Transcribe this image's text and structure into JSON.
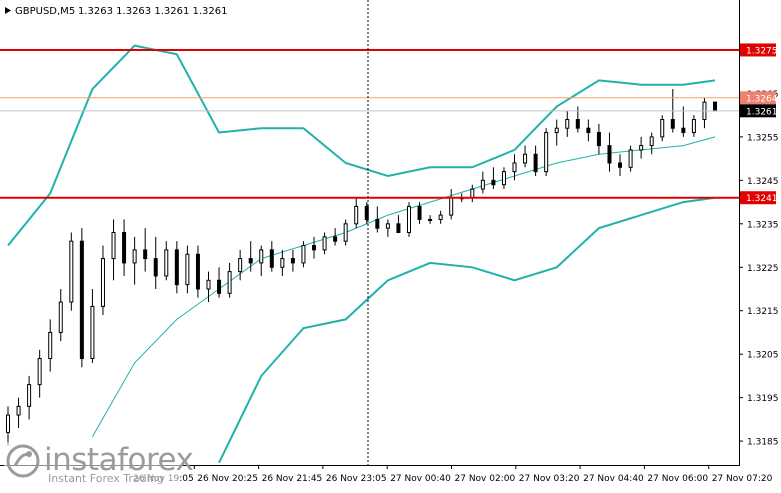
{
  "header": {
    "symbol": "GBPUSD,M5",
    "ohlc": "1.3263 1.3263 1.3261 1.3261"
  },
  "price_scale": {
    "ticks": [
      "1.3265",
      "1.3255",
      "1.3245",
      "1.3235",
      "1.3225",
      "1.3215",
      "1.3205",
      "1.3195",
      "1.3185"
    ]
  },
  "time_scale": {
    "ticks": [
      "26 Nov 19:05",
      "26 Nov 20:25",
      "26 Nov 21:45",
      "26 Nov 23:05",
      "27 Nov 00:40",
      "27 Nov 02:00",
      "27 Nov 03:20",
      "27 Nov 04:40",
      "27 Nov 06:00",
      "27 Nov 07:20"
    ]
  },
  "price_tags": {
    "level_high": "1.3275",
    "last_high": "1.3264",
    "current": "1.3261",
    "level_low": "1.3241"
  },
  "watermark": {
    "brand": "instaforex",
    "tagline": "Instant Forex Trading"
  },
  "colors": {
    "candle": "#000000",
    "bollinger": "#20b2aa",
    "moving_average": "#20b2aa",
    "level_lines": "#e00000",
    "price_line": "#f4a460",
    "tag_red": "#e00000",
    "tag_dark": "#000000",
    "tag_orange": "#f08070",
    "grid_dotted": "#000000"
  },
  "chart_data": {
    "type": "candlestick",
    "ylim": [
      1.31795,
      1.32865
    ],
    "horizontal_levels": [
      1.3275,
      1.3241
    ],
    "bid_line": 1.3264,
    "last_price": 1.3261,
    "candles": [
      [
        1.3187,
        1.3193,
        1.3184,
        1.3191
      ],
      [
        1.3191,
        1.3195,
        1.3188,
        1.3193
      ],
      [
        1.3193,
        1.32,
        1.319,
        1.3198
      ],
      [
        1.3198,
        1.3206,
        1.3195,
        1.3204
      ],
      [
        1.3204,
        1.3213,
        1.3201,
        1.321
      ],
      [
        1.321,
        1.322,
        1.3208,
        1.3217
      ],
      [
        1.3217,
        1.3233,
        1.3215,
        1.3231
      ],
      [
        1.3231,
        1.3234,
        1.3202,
        1.3204
      ],
      [
        1.3204,
        1.322,
        1.3203,
        1.3216
      ],
      [
        1.3216,
        1.323,
        1.3214,
        1.3227
      ],
      [
        1.3227,
        1.3236,
        1.3222,
        1.3233
      ],
      [
        1.3233,
        1.3236,
        1.3223,
        1.3226
      ],
      [
        1.3226,
        1.3232,
        1.3221,
        1.3229
      ],
      [
        1.3229,
        1.3234,
        1.3224,
        1.3227
      ],
      [
        1.3227,
        1.3232,
        1.322,
        1.3223
      ],
      [
        1.3223,
        1.3231,
        1.3222,
        1.3229
      ],
      [
        1.3229,
        1.3231,
        1.3219,
        1.3221
      ],
      [
        1.3221,
        1.323,
        1.3219,
        1.3228
      ],
      [
        1.3228,
        1.323,
        1.3218,
        1.322
      ],
      [
        1.322,
        1.3224,
        1.3217,
        1.3222
      ],
      [
        1.3222,
        1.3225,
        1.3218,
        1.3219
      ],
      [
        1.3219,
        1.3226,
        1.3218,
        1.3224
      ],
      [
        1.3224,
        1.3229,
        1.3222,
        1.3227
      ],
      [
        1.3227,
        1.3231,
        1.3224,
        1.3226
      ],
      [
        1.3226,
        1.323,
        1.3223,
        1.3229
      ],
      [
        1.3229,
        1.3231,
        1.3224,
        1.3225
      ],
      [
        1.3225,
        1.3229,
        1.3223,
        1.3227
      ],
      [
        1.3227,
        1.3229,
        1.3224,
        1.3226
      ],
      [
        1.3226,
        1.3231,
        1.3225,
        1.323
      ],
      [
        1.323,
        1.3232,
        1.3227,
        1.3229
      ],
      [
        1.3229,
        1.3233,
        1.3228,
        1.3232
      ],
      [
        1.3232,
        1.3234,
        1.323,
        1.3231
      ],
      [
        1.3231,
        1.3236,
        1.323,
        1.3235
      ],
      [
        1.3235,
        1.3241,
        1.3234,
        1.3239
      ],
      [
        1.3239,
        1.324,
        1.3235,
        1.3236
      ],
      [
        1.3236,
        1.3239,
        1.3233,
        1.3234
      ],
      [
        1.3234,
        1.3236,
        1.3232,
        1.3235
      ],
      [
        1.3235,
        1.3237,
        1.3233,
        1.3233
      ],
      [
        1.3233,
        1.324,
        1.3232,
        1.3239
      ],
      [
        1.3239,
        1.324,
        1.3235,
        1.3236
      ],
      [
        1.3236,
        1.3237,
        1.3235,
        1.3236
      ],
      [
        1.3236,
        1.3238,
        1.3235,
        1.3237
      ],
      [
        1.3237,
        1.3243,
        1.3236,
        1.3241
      ],
      [
        1.3241,
        1.3242,
        1.324,
        1.3241
      ],
      [
        1.3241,
        1.3244,
        1.324,
        1.3243
      ],
      [
        1.3243,
        1.3247,
        1.3242,
        1.3245
      ],
      [
        1.3245,
        1.3248,
        1.3243,
        1.3244
      ],
      [
        1.3244,
        1.3248,
        1.3243,
        1.3247
      ],
      [
        1.3247,
        1.3251,
        1.3245,
        1.3249
      ],
      [
        1.3249,
        1.3253,
        1.3248,
        1.3251
      ],
      [
        1.3251,
        1.3253,
        1.3246,
        1.3247
      ],
      [
        1.3247,
        1.3257,
        1.3246,
        1.3256
      ],
      [
        1.3256,
        1.3259,
        1.3253,
        1.3257
      ],
      [
        1.3257,
        1.3261,
        1.3255,
        1.3259
      ],
      [
        1.3259,
        1.3262,
        1.3256,
        1.3257
      ],
      [
        1.3257,
        1.3259,
        1.3254,
        1.3256
      ],
      [
        1.3256,
        1.3258,
        1.3251,
        1.3253
      ],
      [
        1.3253,
        1.3256,
        1.3247,
        1.3249
      ],
      [
        1.3249,
        1.3251,
        1.3246,
        1.3248
      ],
      [
        1.3248,
        1.3253,
        1.3247,
        1.3252
      ],
      [
        1.3252,
        1.3255,
        1.325,
        1.3253
      ],
      [
        1.3253,
        1.3256,
        1.3251,
        1.3255
      ],
      [
        1.3255,
        1.326,
        1.3254,
        1.3259
      ],
      [
        1.3259,
        1.3266,
        1.3256,
        1.3257
      ],
      [
        1.3257,
        1.3262,
        1.3255,
        1.3256
      ],
      [
        1.3256,
        1.326,
        1.3255,
        1.3259
      ],
      [
        1.3259,
        1.3264,
        1.3257,
        1.3263
      ],
      [
        1.3263,
        1.3263,
        1.3261,
        1.3261
      ]
    ],
    "bollinger_upper": [
      [
        0,
        1.323
      ],
      [
        4,
        1.3242
      ],
      [
        8,
        1.3266
      ],
      [
        12,
        1.3276
      ],
      [
        16,
        1.3274
      ],
      [
        20,
        1.3256
      ],
      [
        24,
        1.3257
      ],
      [
        28,
        1.3257
      ],
      [
        32,
        1.3249
      ],
      [
        36,
        1.3246
      ],
      [
        40,
        1.3248
      ],
      [
        44,
        1.3248
      ],
      [
        48,
        1.3252
      ],
      [
        52,
        1.3262
      ],
      [
        56,
        1.3268
      ],
      [
        60,
        1.3267
      ],
      [
        64,
        1.3267
      ],
      [
        67,
        1.3268
      ]
    ],
    "bollinger_lower": [
      [
        20,
        1.318
      ],
      [
        24,
        1.32
      ],
      [
        28,
        1.3211
      ],
      [
        32,
        1.3213
      ],
      [
        36,
        1.3222
      ],
      [
        40,
        1.3226
      ],
      [
        44,
        1.3225
      ],
      [
        48,
        1.3222
      ],
      [
        52,
        1.3225
      ],
      [
        56,
        1.3234
      ],
      [
        60,
        1.3237
      ],
      [
        64,
        1.324
      ],
      [
        67,
        1.3241
      ]
    ],
    "moving_average": [
      [
        8,
        1.3186
      ],
      [
        12,
        1.3203
      ],
      [
        16,
        1.3213
      ],
      [
        20,
        1.322
      ],
      [
        24,
        1.3227
      ],
      [
        28,
        1.323
      ],
      [
        32,
        1.3233
      ],
      [
        36,
        1.3237
      ],
      [
        40,
        1.324
      ],
      [
        44,
        1.3243
      ],
      [
        48,
        1.3246
      ],
      [
        52,
        1.3249
      ],
      [
        56,
        1.3251
      ],
      [
        60,
        1.3252
      ],
      [
        64,
        1.3253
      ],
      [
        67,
        1.3255
      ]
    ]
  }
}
